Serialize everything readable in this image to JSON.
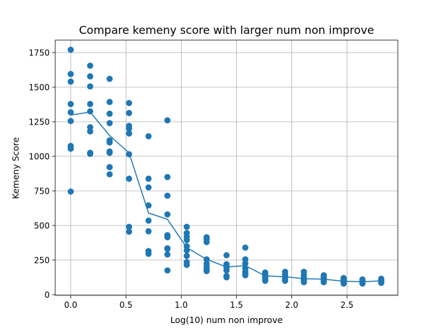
{
  "chart_data": {
    "type": "scatter",
    "title": "Compare kemeny score with larger num non improve",
    "xlabel": "Log(10) num non improve",
    "ylabel": "Kemeny Score",
    "xlim": [
      -0.14,
      2.96
    ],
    "ylim": [
      -5,
      1840
    ],
    "xticks": [
      0.0,
      0.5,
      1.0,
      1.5,
      2.0,
      2.5
    ],
    "xtick_labels": [
      "0.0",
      "0.5",
      "1.0",
      "1.5",
      "2.0",
      "2.5"
    ],
    "yticks": [
      0,
      250,
      500,
      750,
      1000,
      1250,
      1500,
      1750
    ],
    "ytick_labels": [
      "0",
      "250",
      "500",
      "750",
      "1000",
      "1250",
      "1500",
      "1750"
    ],
    "grid": true,
    "colors": {
      "series": "#1f77b4",
      "grid": "#b0b0b0",
      "axes": "#000000"
    },
    "series": [
      {
        "kind": "points",
        "points": [
          [
            0.0,
            1770
          ],
          [
            0.0,
            1595
          ],
          [
            0.0,
            1540
          ],
          [
            0.0,
            1378
          ],
          [
            0.0,
            1318
          ],
          [
            0.0,
            1255
          ],
          [
            0.0,
            1075
          ],
          [
            0.0,
            1055
          ],
          [
            0.0,
            745
          ],
          [
            0.176,
            1655
          ],
          [
            0.176,
            1578
          ],
          [
            0.176,
            1505
          ],
          [
            0.176,
            1378
          ],
          [
            0.176,
            1325
          ],
          [
            0.176,
            1210
          ],
          [
            0.176,
            1180
          ],
          [
            0.176,
            1025
          ],
          [
            0.176,
            1018
          ],
          [
            0.352,
            1560
          ],
          [
            0.352,
            1393
          ],
          [
            0.352,
            1308
          ],
          [
            0.352,
            1240
          ],
          [
            0.352,
            1115
          ],
          [
            0.352,
            1100
          ],
          [
            0.352,
            1035
          ],
          [
            0.352,
            1025
          ],
          [
            0.352,
            922
          ],
          [
            0.352,
            870
          ],
          [
            0.528,
            1385
          ],
          [
            0.528,
            1313
          ],
          [
            0.528,
            1220
          ],
          [
            0.528,
            1200
          ],
          [
            0.528,
            1165
          ],
          [
            0.528,
            1015
          ],
          [
            0.528,
            838
          ],
          [
            0.528,
            490
          ],
          [
            0.528,
            455
          ],
          [
            0.704,
            1145
          ],
          [
            0.704,
            838
          ],
          [
            0.704,
            775
          ],
          [
            0.704,
            645
          ],
          [
            0.704,
            535
          ],
          [
            0.704,
            458
          ],
          [
            0.704,
            315
          ],
          [
            0.704,
            295
          ],
          [
            0.875,
            1260
          ],
          [
            0.875,
            850
          ],
          [
            0.875,
            715
          ],
          [
            0.875,
            580
          ],
          [
            0.875,
            430
          ],
          [
            0.875,
            415
          ],
          [
            0.875,
            335
          ],
          [
            0.875,
            330
          ],
          [
            0.875,
            290
          ],
          [
            0.875,
            175
          ],
          [
            1.05,
            490
          ],
          [
            1.05,
            445
          ],
          [
            1.05,
            420
          ],
          [
            1.05,
            395
          ],
          [
            1.05,
            350
          ],
          [
            1.05,
            320
          ],
          [
            1.05,
            280
          ],
          [
            1.05,
            235
          ],
          [
            1.05,
            215
          ],
          [
            1.23,
            415
          ],
          [
            1.23,
            400
          ],
          [
            1.23,
            380
          ],
          [
            1.23,
            255
          ],
          [
            1.23,
            225
          ],
          [
            1.23,
            205
          ],
          [
            1.23,
            185
          ],
          [
            1.23,
            170
          ],
          [
            1.41,
            285
          ],
          [
            1.41,
            220
          ],
          [
            1.41,
            205
          ],
          [
            1.41,
            195
          ],
          [
            1.41,
            175
          ],
          [
            1.41,
            135
          ],
          [
            1.41,
            125
          ],
          [
            1.58,
            340
          ],
          [
            1.58,
            255
          ],
          [
            1.58,
            225
          ],
          [
            1.58,
            190
          ],
          [
            1.58,
            165
          ],
          [
            1.58,
            150
          ],
          [
            1.58,
            140
          ],
          [
            1.76,
            160
          ],
          [
            1.76,
            145
          ],
          [
            1.76,
            130
          ],
          [
            1.76,
            115
          ],
          [
            1.76,
            100
          ],
          [
            1.94,
            165
          ],
          [
            1.94,
            145
          ],
          [
            1.94,
            130
          ],
          [
            1.94,
            115
          ],
          [
            1.94,
            100
          ],
          [
            2.11,
            165
          ],
          [
            2.11,
            140
          ],
          [
            2.11,
            120
          ],
          [
            2.11,
            105
          ],
          [
            2.11,
            90
          ],
          [
            2.29,
            140
          ],
          [
            2.29,
            125
          ],
          [
            2.29,
            115
          ],
          [
            2.29,
            100
          ],
          [
            2.29,
            90
          ],
          [
            2.47,
            120
          ],
          [
            2.47,
            110
          ],
          [
            2.47,
            100
          ],
          [
            2.47,
            90
          ],
          [
            2.47,
            80
          ],
          [
            2.64,
            110
          ],
          [
            2.64,
            100
          ],
          [
            2.64,
            90
          ],
          [
            2.64,
            80
          ],
          [
            2.81,
            115
          ],
          [
            2.81,
            105
          ],
          [
            2.81,
            95
          ],
          [
            2.81,
            85
          ]
        ]
      },
      {
        "kind": "line",
        "x": [
          0.0,
          0.176,
          0.352,
          0.528,
          0.704,
          0.875,
          1.05,
          1.23,
          1.41,
          1.58,
          1.76,
          1.94,
          2.11,
          2.29,
          2.47,
          2.64,
          2.81
        ],
        "y": [
          1298,
          1320,
          1150,
          1025,
          590,
          545,
          340,
          255,
          200,
          210,
          135,
          130,
          115,
          112,
          97,
          93,
          100
        ]
      }
    ]
  }
}
